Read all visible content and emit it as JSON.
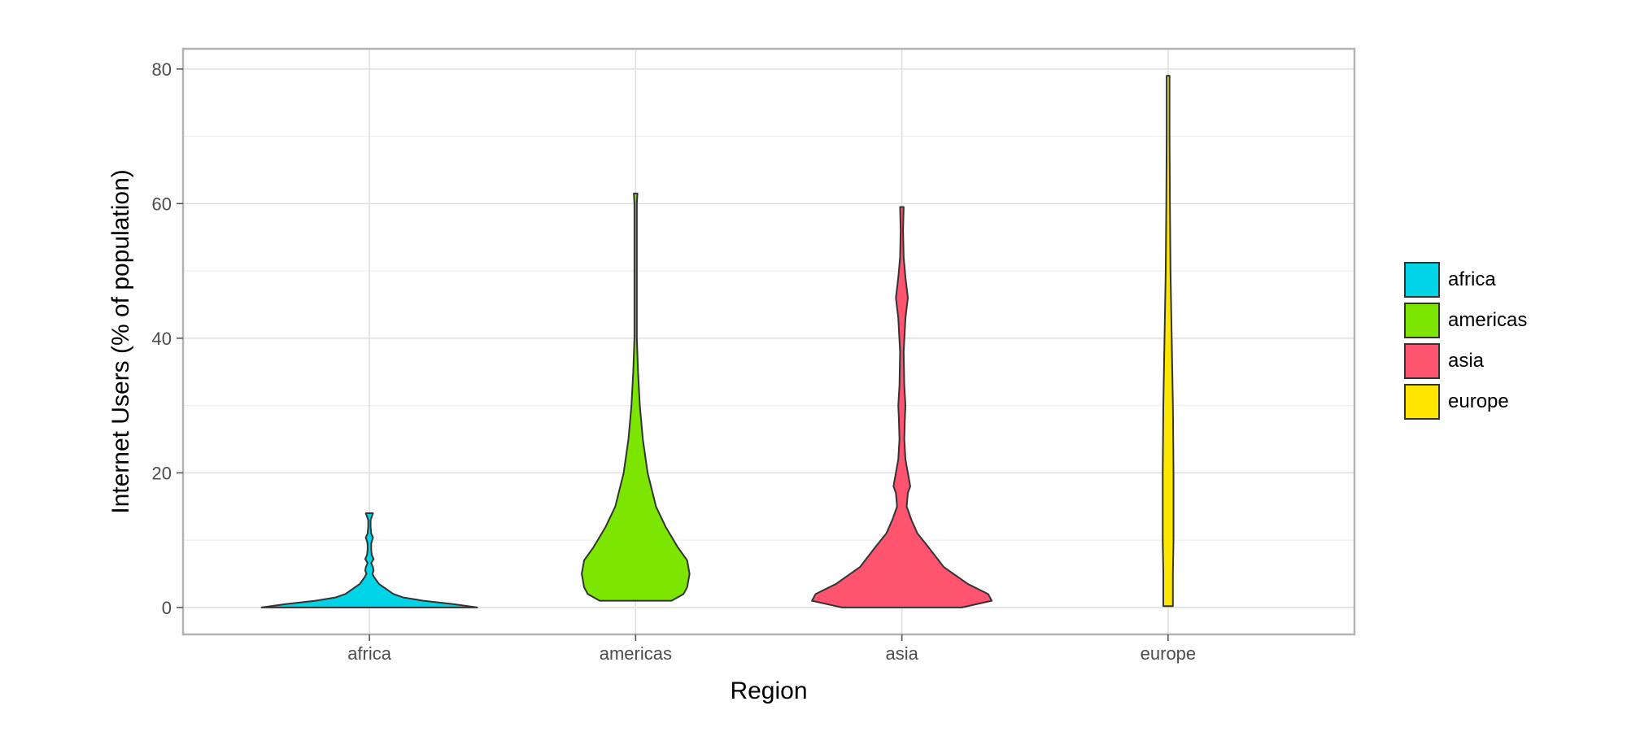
{
  "chart_data": {
    "type": "violin",
    "xlabel": "Region",
    "ylabel": "Internet Users (% of population)",
    "categories": [
      "africa",
      "americas",
      "asia",
      "europe"
    ],
    "ylim": [
      -4,
      83
    ],
    "yticks": [
      0,
      20,
      40,
      60,
      80
    ],
    "grid": true,
    "legend": {
      "position": "right",
      "entries": [
        "africa",
        "americas",
        "asia",
        "europe"
      ]
    },
    "colors": {
      "africa": "#00d4e6",
      "americas": "#7ce600",
      "asia": "#ff5470",
      "europe": "#ffe600"
    },
    "outline_color": "#333333",
    "series": [
      {
        "name": "africa",
        "min": 0,
        "max": 14,
        "profile": [
          [
            0,
            0.9
          ],
          [
            0.5,
            0.7
          ],
          [
            1,
            0.45
          ],
          [
            1.5,
            0.28
          ],
          [
            2,
            0.2
          ],
          [
            2.5,
            0.16
          ],
          [
            3,
            0.12
          ],
          [
            3.5,
            0.08
          ],
          [
            4,
            0.06
          ],
          [
            4.5,
            0.04
          ],
          [
            5,
            0.025
          ],
          [
            5.5,
            0.035
          ],
          [
            6,
            0.03
          ],
          [
            6.6,
            0.015
          ],
          [
            7.2,
            0.035
          ],
          [
            7.8,
            0.02
          ],
          [
            8.5,
            0.015
          ],
          [
            9.5,
            0.015
          ],
          [
            10.4,
            0.03
          ],
          [
            11,
            0.015
          ],
          [
            12,
            0.01
          ],
          [
            13,
            0.01
          ],
          [
            13.5,
            0.02
          ],
          [
            14,
            0.03
          ]
        ]
      },
      {
        "name": "americas",
        "min": 1,
        "max": 61.5,
        "profile": [
          [
            1,
            0.3
          ],
          [
            2,
            0.4
          ],
          [
            3,
            0.43
          ],
          [
            5,
            0.45
          ],
          [
            7,
            0.43
          ],
          [
            9,
            0.35
          ],
          [
            12,
            0.25
          ],
          [
            15,
            0.17
          ],
          [
            20,
            0.1
          ],
          [
            25,
            0.06
          ],
          [
            30,
            0.035
          ],
          [
            35,
            0.02
          ],
          [
            40,
            0.01
          ],
          [
            50,
            0.01
          ],
          [
            60,
            0.01
          ],
          [
            61.5,
            0.015
          ]
        ]
      },
      {
        "name": "asia",
        "min": 0,
        "max": 59.5,
        "profile": [
          [
            0,
            0.5
          ],
          [
            1,
            0.75
          ],
          [
            2,
            0.72
          ],
          [
            3.5,
            0.55
          ],
          [
            6,
            0.35
          ],
          [
            9,
            0.22
          ],
          [
            11,
            0.13
          ],
          [
            13,
            0.08
          ],
          [
            15,
            0.04
          ],
          [
            17,
            0.05
          ],
          [
            18,
            0.07
          ],
          [
            20,
            0.05
          ],
          [
            22,
            0.03
          ],
          [
            25,
            0.02
          ],
          [
            28,
            0.025
          ],
          [
            30,
            0.03
          ],
          [
            33,
            0.02
          ],
          [
            38,
            0.015
          ],
          [
            43,
            0.03
          ],
          [
            46,
            0.05
          ],
          [
            49,
            0.03
          ],
          [
            52,
            0.015
          ],
          [
            56,
            0.01
          ],
          [
            59.5,
            0.015
          ]
        ]
      },
      {
        "name": "europe",
        "min": 0.2,
        "max": 79,
        "profile": [
          [
            0.2,
            0.04
          ],
          [
            5,
            0.04
          ],
          [
            10,
            0.045
          ],
          [
            20,
            0.045
          ],
          [
            30,
            0.04
          ],
          [
            40,
            0.03
          ],
          [
            50,
            0.02
          ],
          [
            60,
            0.015
          ],
          [
            70,
            0.012
          ],
          [
            79,
            0.012
          ]
        ]
      }
    ]
  }
}
